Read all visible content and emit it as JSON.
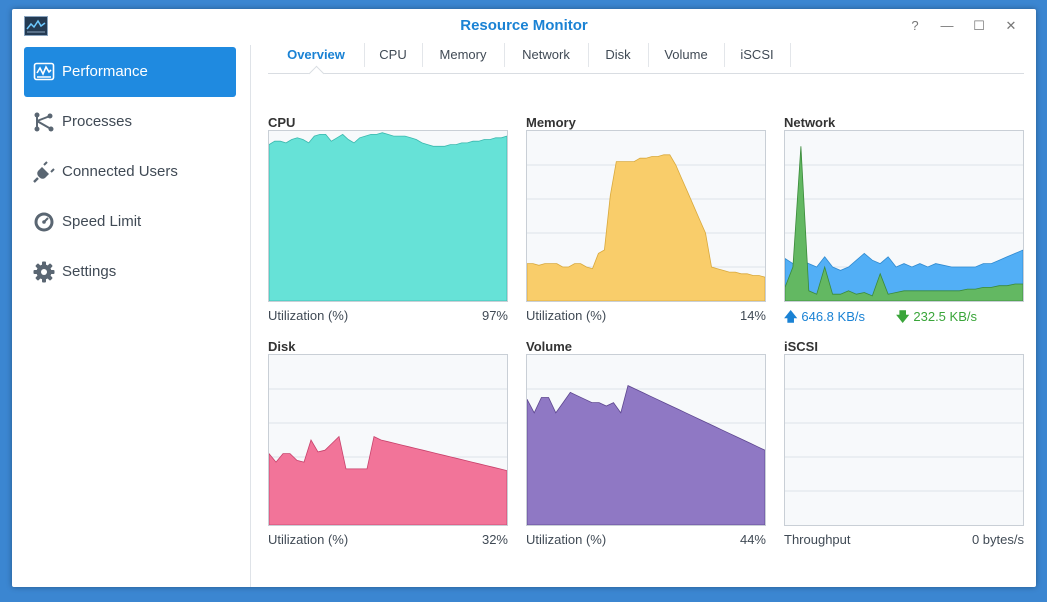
{
  "window": {
    "title": "Resource Monitor",
    "help_icon": "?",
    "minimize_icon": "—",
    "maximize_icon": "☐",
    "close_icon": "✕"
  },
  "sidebar": {
    "items": [
      {
        "label": "Performance",
        "icon": "performance-icon",
        "active": true
      },
      {
        "label": "Processes",
        "icon": "processes-icon"
      },
      {
        "label": "Connected Users",
        "icon": "plug-icon"
      },
      {
        "label": "Speed Limit",
        "icon": "gauge-icon"
      },
      {
        "label": "Settings",
        "icon": "gear-icon"
      }
    ]
  },
  "tabs": [
    "Overview",
    "CPU",
    "Memory",
    "Network",
    "Disk",
    "Volume",
    "iSCSI"
  ],
  "panels": {
    "cpu": {
      "title": "CPU",
      "metric": "Utilization (%)",
      "value": "97%",
      "color": "#66e2d7",
      "stroke": "#3bb8ae",
      "series": [
        92,
        94,
        94,
        93,
        95,
        96,
        95,
        93,
        97,
        98,
        98,
        94,
        96,
        98,
        95,
        93,
        96,
        97,
        98,
        98,
        99,
        98,
        97,
        97,
        97,
        96,
        95,
        93,
        92,
        91,
        91,
        91,
        92,
        92,
        93,
        93,
        94,
        94,
        95,
        95,
        96,
        96,
        97
      ]
    },
    "memory": {
      "title": "Memory",
      "metric": "Utilization (%)",
      "value": "14%",
      "color": "#f9cd6a",
      "stroke": "#d9a93c",
      "series": [
        22,
        22,
        21,
        22,
        22,
        22,
        20,
        20,
        22,
        22,
        20,
        19,
        28,
        30,
        62,
        82,
        82,
        82,
        82,
        84,
        84,
        85,
        85,
        86,
        86,
        80,
        72,
        64,
        56,
        48,
        40,
        20,
        19,
        18,
        17,
        17,
        16,
        16,
        15,
        15,
        14
      ]
    },
    "network": {
      "title": "Network",
      "up": "646.8 KB/s",
      "down": "232.5 KB/s",
      "up_color": "#52aff6",
      "down_color": "#63b862",
      "up_series": [
        25,
        22,
        24,
        22,
        20,
        26,
        20,
        18,
        20,
        24,
        28,
        24,
        22,
        26,
        20,
        22,
        20,
        22,
        20,
        22,
        21,
        20,
        20,
        20,
        20,
        22,
        22,
        24,
        26,
        28,
        30
      ],
      "down_series": [
        8,
        20,
        91,
        6,
        4,
        20,
        4,
        4,
        6,
        4,
        5,
        3,
        16,
        4,
        5,
        6,
        6,
        6,
        6,
        6,
        6,
        6,
        6,
        7,
        7,
        8,
        8,
        9,
        9,
        10,
        10
      ]
    },
    "disk": {
      "title": "Disk",
      "metric": "Utilization (%)",
      "value": "32%",
      "color": "#f27499",
      "stroke": "#c7416b",
      "series": [
        42,
        37,
        42,
        42,
        38,
        37,
        50,
        43,
        44,
        48,
        52,
        33,
        33,
        33,
        33,
        52,
        50,
        49,
        48,
        47,
        46,
        45,
        44,
        43,
        42,
        41,
        40,
        39,
        38,
        37,
        36,
        35,
        34,
        33,
        32
      ]
    },
    "volume": {
      "title": "Volume",
      "metric": "Utilization (%)",
      "value": "44%",
      "color": "#8f78c4",
      "stroke": "#5d468f",
      "series": [
        74,
        66,
        75,
        75,
        66,
        72,
        78,
        76,
        74,
        72,
        72,
        70,
        72,
        66,
        82,
        80,
        78,
        76,
        74,
        72,
        70,
        68,
        66,
        64,
        62,
        60,
        58,
        56,
        54,
        52,
        50,
        48,
        46,
        44
      ]
    },
    "iscsi": {
      "title": "iSCSI",
      "metric": "Throughput",
      "value": "0 bytes/s"
    }
  }
}
